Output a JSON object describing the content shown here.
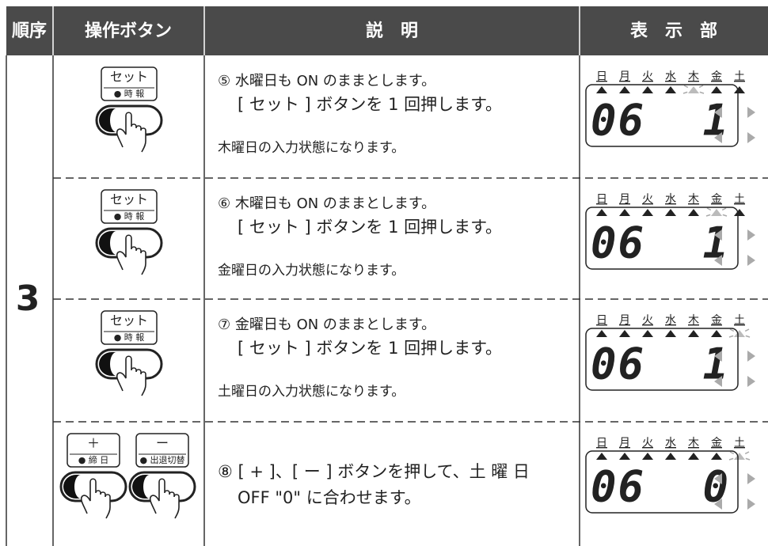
{
  "header": {
    "order": "順序",
    "buttons": "操作ボタン",
    "description": "説　明",
    "display": "表　示　部"
  },
  "step": "3",
  "rows": [
    {
      "buttons": [
        {
          "label": "セット",
          "sub": "● 時 報"
        }
      ],
      "description": [
        "⑤ 水曜日も ON のままとします。",
        "[ セット ] ボタンを 1 回押します。"
      ],
      "note": "木曜日の入力状態になります。",
      "display": {
        "days": [
          "日",
          "月",
          "火",
          "水",
          "木",
          "金",
          "土"
        ],
        "left": "06",
        "right": "1"
      }
    },
    {
      "buttons": [
        {
          "label": "セット",
          "sub": "● 時 報"
        }
      ],
      "description": [
        "⑥ 木曜日も ON のままとします。",
        "[ セット ] ボタンを 1 回押します。"
      ],
      "note": "金曜日の入力状態になります。",
      "display": {
        "days": [
          "日",
          "月",
          "火",
          "水",
          "木",
          "金",
          "土"
        ],
        "left": "06",
        "right": "1"
      }
    },
    {
      "buttons": [
        {
          "label": "セット",
          "sub": "● 時 報"
        }
      ],
      "description": [
        "⑦ 金曜日も ON のままとします。",
        "[ セット ] ボタンを 1 回押します。"
      ],
      "note": "土曜日の入力状態になります。",
      "display": {
        "days": [
          "日",
          "月",
          "火",
          "水",
          "木",
          "金",
          "土"
        ],
        "left": "06",
        "right": "1"
      }
    },
    {
      "buttons": [
        {
          "label": "＋",
          "sub": "● 締 日"
        },
        {
          "label": "ー",
          "sub": "● 出退切替"
        }
      ],
      "description": [
        "⑧ [ + ]、[ ー ] ボタンを押して、土 曜 日",
        "OFF \"0\" に合わせます。"
      ],
      "display": {
        "days": [
          "日",
          "月",
          "火",
          "水",
          "木",
          "金",
          "土"
        ],
        "left": "06",
        "right": "0"
      }
    }
  ]
}
